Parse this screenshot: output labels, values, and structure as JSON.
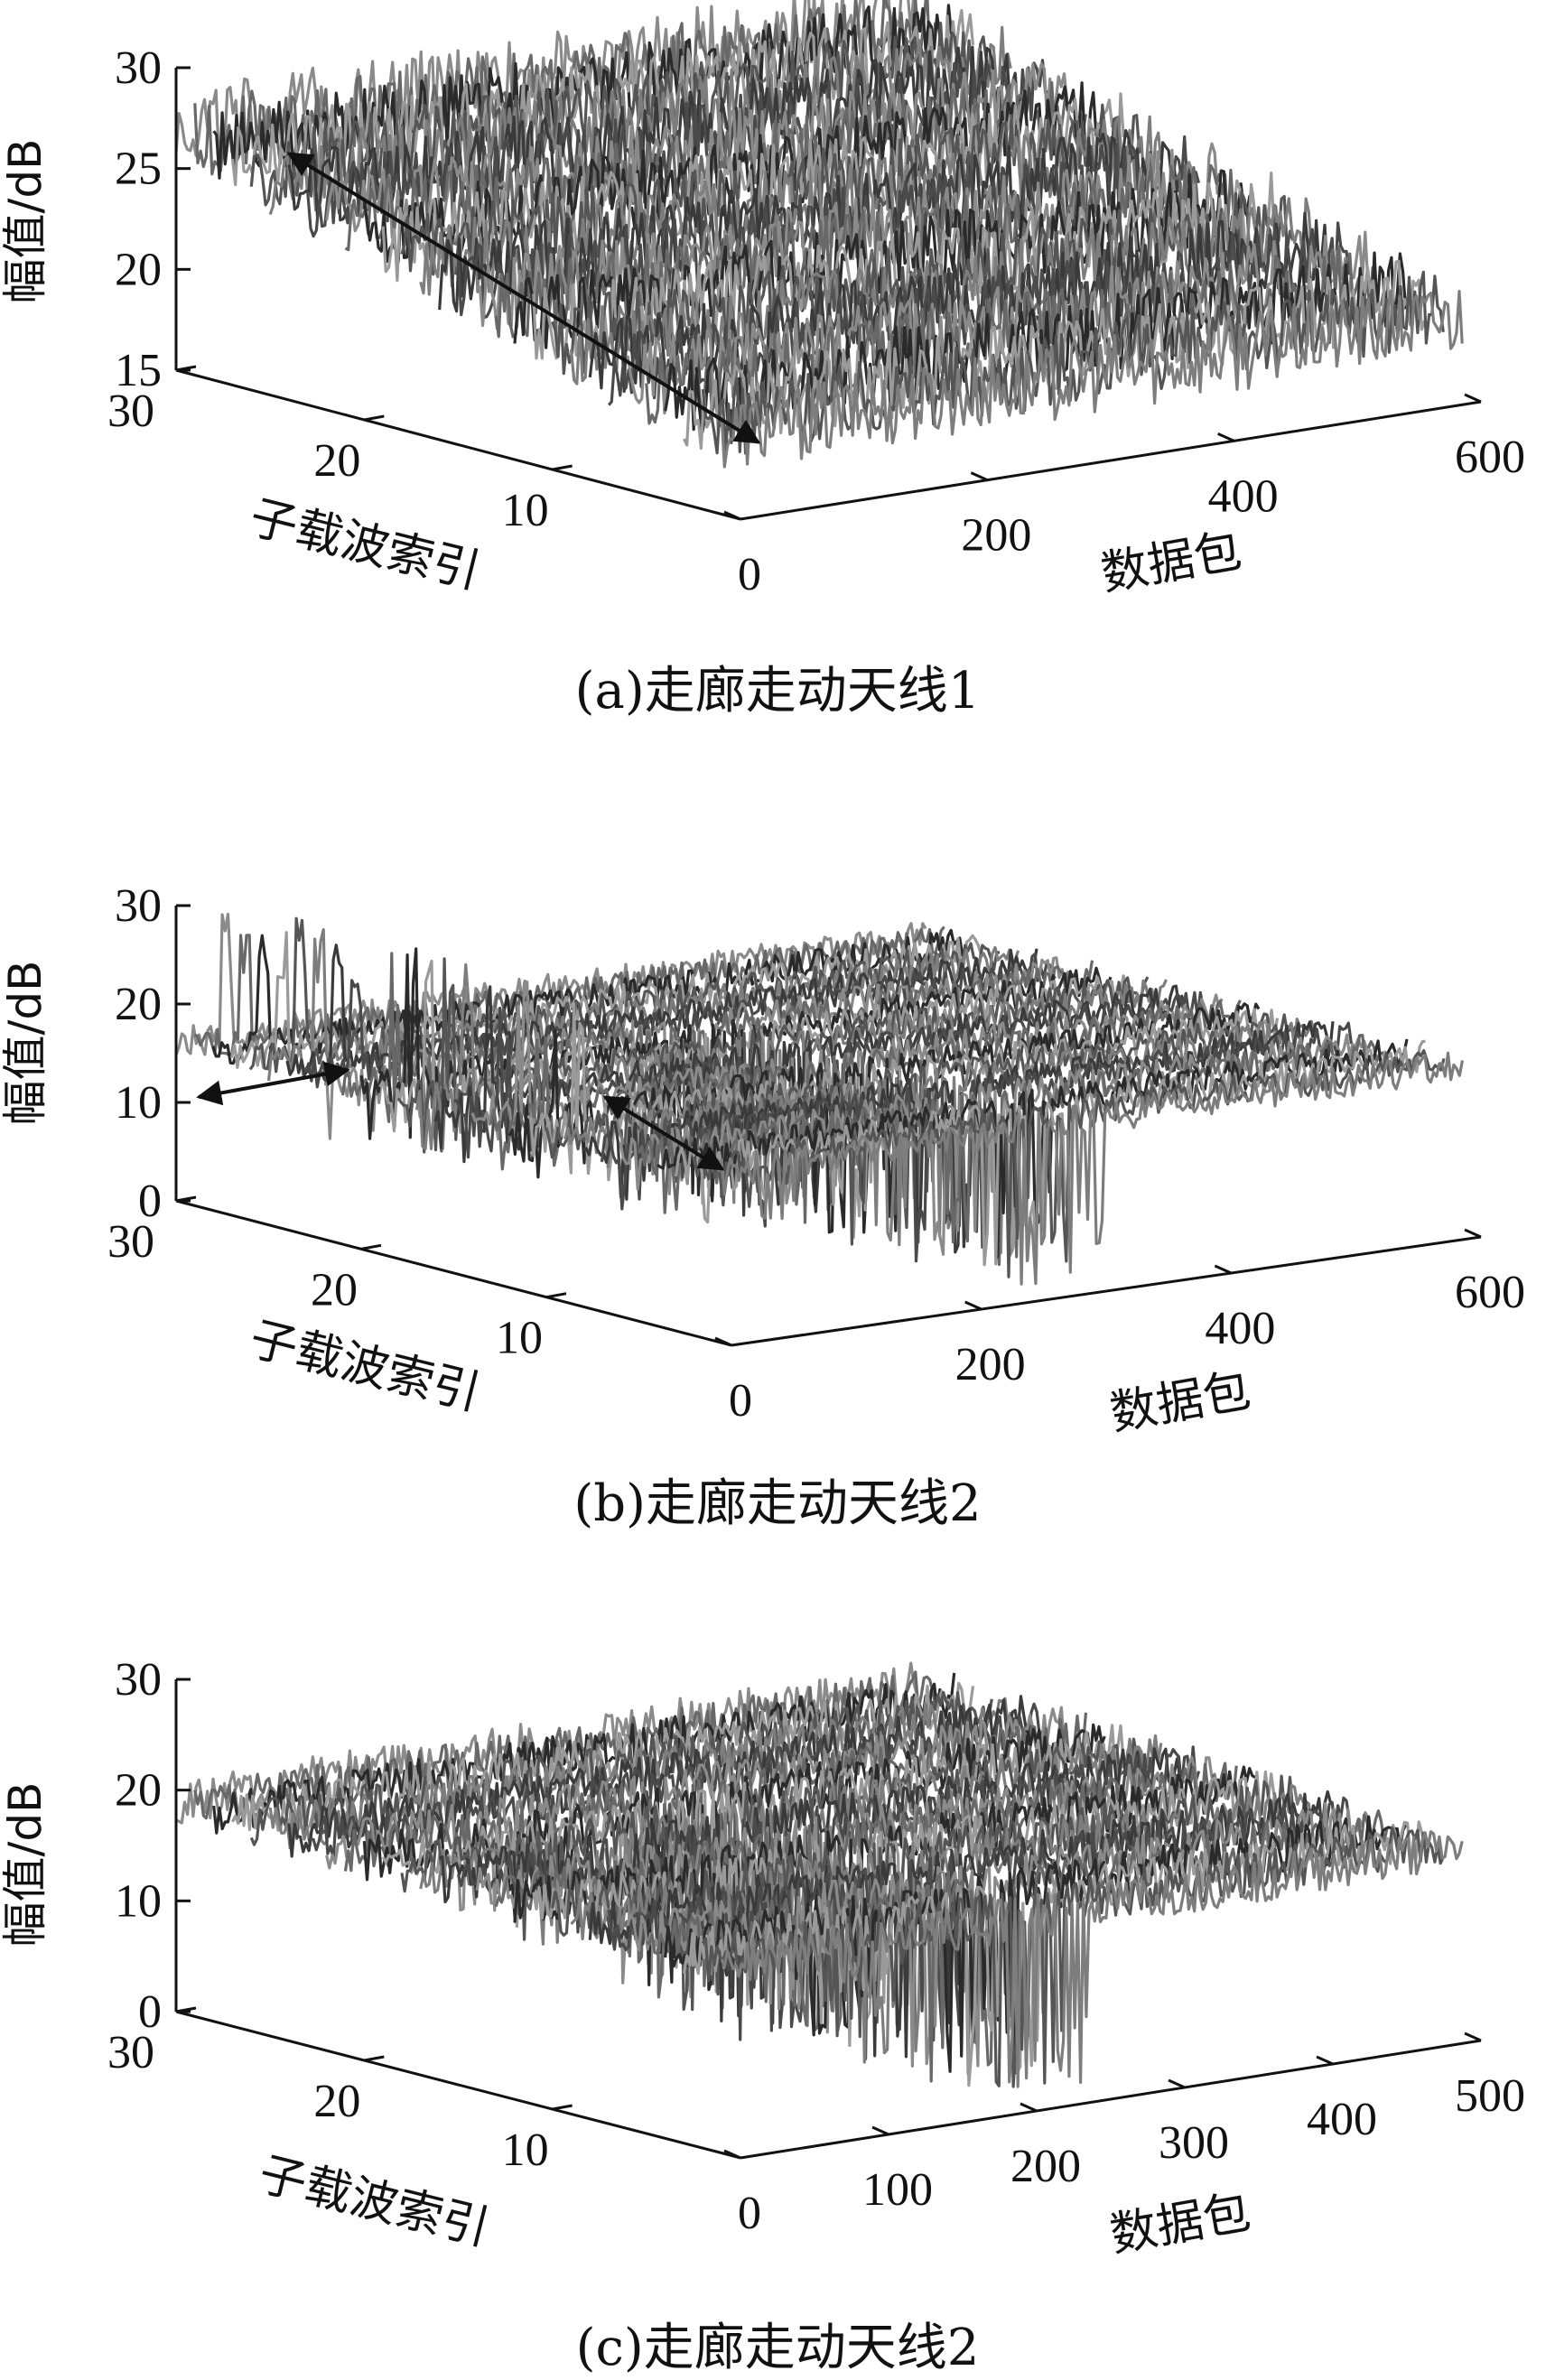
{
  "chart_data": [
    {
      "type": "line",
      "caption": "(a)走廊走动天线1",
      "zlabel": "幅值/dB",
      "ylabel": "子载波索引",
      "xlabel": "数据包",
      "z_ticks": [
        "15",
        "20",
        "25",
        "30"
      ],
      "zlim": [
        15,
        30
      ],
      "y_ticks": [
        "30",
        "20",
        "10"
      ],
      "x_ticks": [
        "0",
        "200",
        "400",
        "600"
      ],
      "ylim": [
        0,
        30
      ],
      "xlim": [
        0,
        600
      ],
      "series_count": 30,
      "amplitude_first_subcarrier": 27,
      "amplitude_last_subcarrier": 19,
      "noise_db": 1.2,
      "dips": [],
      "spikes": []
    },
    {
      "type": "line",
      "caption": "(b)走廊走动天线2",
      "zlabel": "幅值/dB",
      "ylabel": "子载波索引",
      "xlabel": "数据包",
      "z_ticks": [
        "0",
        "10",
        "20",
        "30"
      ],
      "zlim": [
        0,
        30
      ],
      "y_ticks": [
        "30",
        "20",
        "10"
      ],
      "x_ticks": [
        "0",
        "200",
        "400",
        "600"
      ],
      "ylim": [
        0,
        30
      ],
      "xlim": [
        0,
        600
      ],
      "series_count": 30,
      "amplitude_first_subcarrier": 16,
      "amplitude_last_subcarrier": 17,
      "noise_db": 1.0,
      "spikes": [
        {
          "packet": 40,
          "peak_db": 30
        }
      ],
      "dips": [
        {
          "packet": 280,
          "low_db": 0
        },
        {
          "packet": 40,
          "low_db": 10
        }
      ]
    },
    {
      "type": "line",
      "caption": "(c)走廊走动天线2",
      "zlabel": "幅值/dB",
      "ylabel": "子载波索引",
      "xlabel": "数据包",
      "z_ticks": [
        "0",
        "10",
        "20",
        "30"
      ],
      "zlim": [
        0,
        30
      ],
      "y_ticks": [
        "30",
        "20",
        "10"
      ],
      "x_ticks": [
        "0",
        "100",
        "200",
        "300",
        "400",
        "500"
      ],
      "ylim": [
        0,
        30
      ],
      "xlim": [
        0,
        500
      ],
      "series_count": 30,
      "amplitude_first_subcarrier": 19,
      "amplitude_last_subcarrier": 17,
      "noise_db": 1.3,
      "spikes": [],
      "dips": [
        {
          "packet": 220,
          "low_db": 0
        },
        {
          "packet": 110,
          "low_db": 10
        }
      ]
    }
  ]
}
